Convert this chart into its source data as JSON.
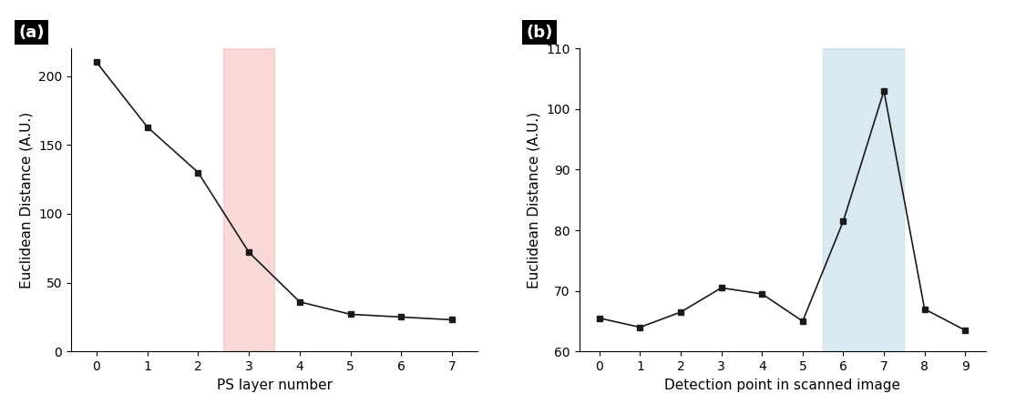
{
  "plot_a": {
    "x": [
      0,
      1,
      2,
      3,
      4,
      5,
      6,
      7
    ],
    "y": [
      210,
      163,
      130,
      72,
      36,
      27,
      25,
      23
    ],
    "xlabel": "PS layer number",
    "ylabel": "Euclidean Distance (A.U.)",
    "ylim": [
      0,
      220
    ],
    "yticks": [
      0,
      50,
      100,
      150,
      200
    ],
    "xticks": [
      0,
      1,
      2,
      3,
      4,
      5,
      6,
      7
    ],
    "shade_x_start": 2.5,
    "shade_x_end": 3.5,
    "shade_color": "#f5b8b8",
    "shade_alpha": 0.55,
    "label": "(a)"
  },
  "plot_b": {
    "x": [
      0,
      1,
      2,
      3,
      4,
      5,
      6,
      7,
      8,
      9
    ],
    "y": [
      65.5,
      64.0,
      66.5,
      70.5,
      69.5,
      65.0,
      81.5,
      103.0,
      67.0,
      63.5
    ],
    "xlabel": "Detection point in scanned image",
    "ylabel": "Euclidean Distance (A.U.)",
    "ylim": [
      60,
      110
    ],
    "yticks": [
      60,
      70,
      80,
      90,
      100,
      110
    ],
    "xticks": [
      0,
      1,
      2,
      3,
      4,
      5,
      6,
      7,
      8,
      9
    ],
    "shade_x_start": 5.5,
    "shade_x_end": 7.5,
    "shade_color": "#b8d8e8",
    "shade_alpha": 0.55,
    "label": "(b)"
  },
  "line_color": "#1a1a1a",
  "marker": "s",
  "marker_size": 5,
  "marker_color": "#1a1a1a",
  "line_width": 1.2,
  "label_fontsize": 11,
  "tick_fontsize": 10,
  "panel_label_fontsize": 13,
  "background_color": "#ffffff",
  "figure_facecolor": "#ffffff"
}
